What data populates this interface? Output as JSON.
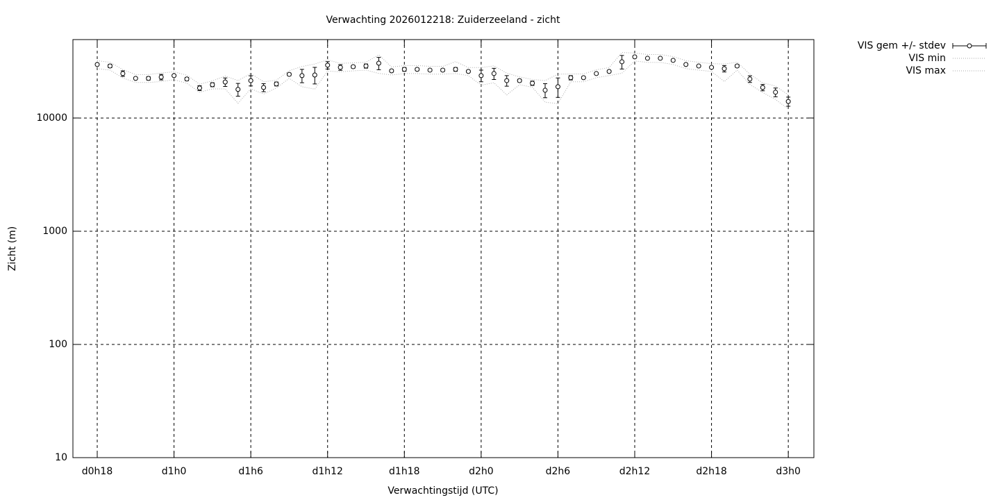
{
  "chart_data": {
    "type": "errorbar",
    "title": "Verwachting 2026012218: Zuiderzeeland - zicht",
    "xlabel": "Verwachtingstijd (UTC)",
    "ylabel": "Zicht (m)",
    "log_y": true,
    "grid": true,
    "xlim": [
      16.1,
      74.0
    ],
    "ylim": [
      10,
      49300
    ],
    "xticks": [
      {
        "value": 18,
        "label": "d0h18"
      },
      {
        "value": 24,
        "label": "d1h0"
      },
      {
        "value": 30,
        "label": "d1h6"
      },
      {
        "value": 36,
        "label": "d1h12"
      },
      {
        "value": 42,
        "label": "d1h18"
      },
      {
        "value": 48,
        "label": "d2h0"
      },
      {
        "value": 54,
        "label": "d2h6"
      },
      {
        "value": 60,
        "label": "d2h12"
      },
      {
        "value": 66,
        "label": "d2h18"
      },
      {
        "value": 72,
        "label": "d3h0"
      }
    ],
    "yticks": [
      10,
      100,
      1000,
      10000
    ],
    "x": [
      18,
      19,
      20,
      21,
      22,
      23,
      24,
      25,
      26,
      27,
      28,
      29,
      30,
      31,
      32,
      33,
      34,
      35,
      36,
      37,
      38,
      39,
      40,
      41,
      42,
      43,
      44,
      45,
      46,
      47,
      48,
      49,
      50,
      51,
      52,
      53,
      54,
      55,
      56,
      57,
      58,
      59,
      60,
      61,
      62,
      63,
      64,
      65,
      66,
      67,
      68,
      69,
      70,
      71,
      72
    ],
    "series": [
      {
        "name": "VIS gem +/- stdev",
        "color": "#000000",
        "values": [
          29700,
          28800,
          24700,
          22400,
          22400,
          23000,
          23700,
          22100,
          18400,
          19700,
          20800,
          17900,
          21400,
          18600,
          20000,
          24300,
          23700,
          24000,
          29300,
          28000,
          28400,
          28800,
          30500,
          26100,
          26900,
          26900,
          26500,
          26500,
          26900,
          25800,
          23700,
          24700,
          21400,
          21400,
          20300,
          17600,
          18900,
          22700,
          22700,
          24700,
          25800,
          31400,
          34700,
          33700,
          33700,
          32300,
          29700,
          28800,
          28000,
          27300,
          28800,
          22100,
          18600,
          16900,
          14000
        ],
        "errors": [
          300,
          1000,
          1400,
          300,
          800,
          1300,
          500,
          700,
          900,
          800,
          1800,
          2300,
          2200,
          1500,
          800,
          700,
          3200,
          4000,
          2200,
          1600,
          800,
          1200,
          3800,
          600,
          1000,
          700,
          500,
          700,
          1000,
          600,
          2800,
          2800,
          2300,
          600,
          900,
          2500,
          3700,
          1000,
          500,
          500,
          500,
          4300,
          600,
          500,
          500,
          700,
          500,
          500,
          500,
          1800,
          800,
          1500,
          1200,
          1500,
          1300
        ]
      },
      {
        "name": "VIS min",
        "color": "#aaaaaa",
        "values": [
          27300,
          26500,
          22600,
          20600,
          20600,
          21000,
          21800,
          20300,
          16900,
          18100,
          18100,
          13500,
          18100,
          16300,
          18400,
          22400,
          18900,
          18000,
          26000,
          25600,
          26100,
          26500,
          24800,
          24000,
          24700,
          24700,
          24400,
          24400,
          24700,
          23700,
          19500,
          20500,
          16000,
          19700,
          18700,
          13800,
          13400,
          20900,
          20900,
          22700,
          23700,
          24900,
          31900,
          31000,
          31000,
          29700,
          27300,
          26500,
          25800,
          21000,
          26500,
          19800,
          16800,
          14600,
          12000
        ]
      },
      {
        "name": "VIS max",
        "color": "#aaaaaa",
        "values": [
          32100,
          31100,
          26800,
          24200,
          24200,
          25000,
          25600,
          23900,
          19900,
          21300,
          23500,
          21400,
          24700,
          20900,
          21600,
          26200,
          28500,
          30000,
          32600,
          30400,
          30700,
          31100,
          36200,
          28200,
          29100,
          29100,
          28600,
          28600,
          31500,
          27900,
          27900,
          28900,
          24900,
          23100,
          21900,
          21400,
          24400,
          24500,
          24500,
          26700,
          27900,
          37900,
          37500,
          36400,
          36400,
          34900,
          32100,
          31100,
          30200,
          30000,
          31100,
          24400,
          20400,
          19200,
          16000
        ]
      }
    ]
  }
}
